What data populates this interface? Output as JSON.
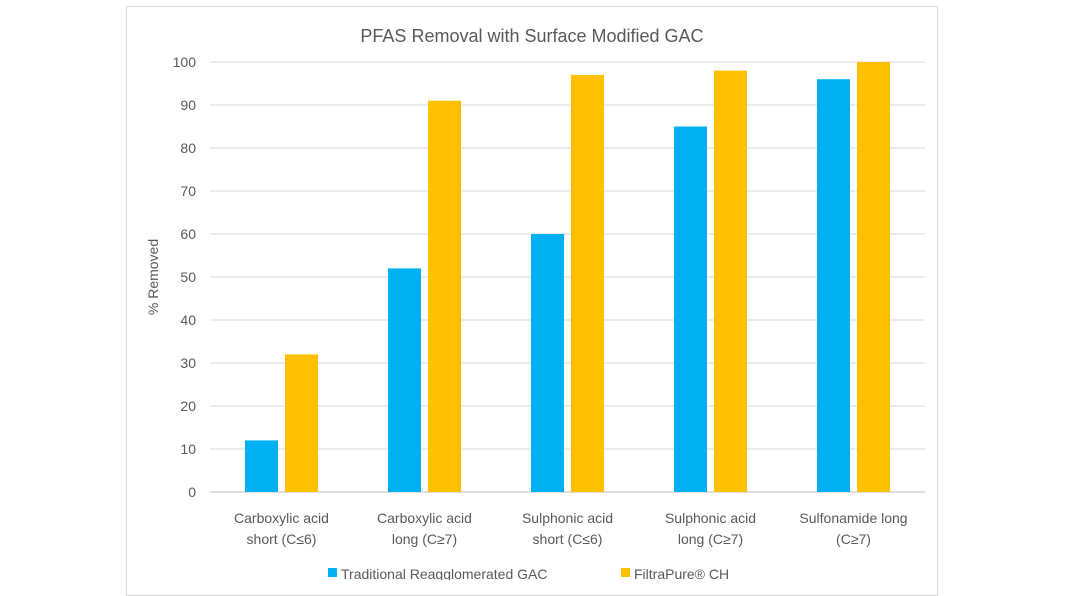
{
  "chart_data": {
    "type": "bar",
    "title": "PFAS Removal with Surface Modified GAC",
    "ylabel": "% Removed",
    "xlabel": "",
    "ylim": [
      0,
      100
    ],
    "yticks": [
      0,
      10,
      20,
      30,
      40,
      50,
      60,
      70,
      80,
      90,
      100
    ],
    "grid": true,
    "legend_position": "bottom",
    "categories": [
      [
        "Carboxylic acid",
        "short (C≤6)"
      ],
      [
        "Carboxylic acid",
        "long (C≥7)"
      ],
      [
        "Sulphonic acid",
        "short (C≤6)"
      ],
      [
        "Sulphonic acid",
        "long (C≥7)"
      ],
      [
        "Sulfonamide long",
        "(C≥7)"
      ]
    ],
    "series": [
      {
        "name": "Traditional Reagglomerated GAC",
        "color": "#00b0f0",
        "values": [
          12,
          52,
          60,
          85,
          96
        ]
      },
      {
        "name": "FiltraPure® CH",
        "color": "#ffc000",
        "values": [
          32,
          91,
          97,
          98,
          100
        ]
      }
    ]
  }
}
